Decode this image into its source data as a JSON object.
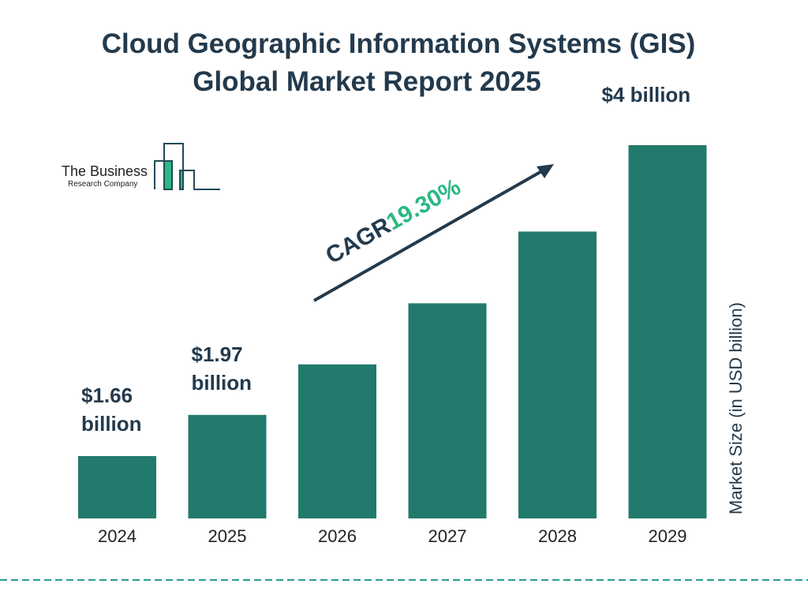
{
  "title_line1": "Cloud Geographic Information Systems (GIS)",
  "title_line2": "Global Market Report 2025",
  "logo": {
    "line1": "The Business",
    "line2": "Research Company"
  },
  "cagr": {
    "label": "CAGR",
    "value": "19.30%"
  },
  "colors": {
    "bar": "#217a6b",
    "accent": "#2bb883",
    "text": "#233a4d"
  },
  "chart_data": {
    "type": "bar",
    "categories": [
      "2024",
      "2025",
      "2026",
      "2027",
      "2028",
      "2029"
    ],
    "values": [
      1.66,
      1.97,
      2.35,
      2.81,
      3.35,
      4.0
    ],
    "data_labels": [
      {
        "category": "2024",
        "line1": "$1.66",
        "line2": "billion"
      },
      {
        "category": "2025",
        "line1": "$1.97",
        "line2": "billion"
      },
      {
        "category": "2029",
        "line1": "$4 billion",
        "line2": ""
      }
    ],
    "ylabel": "Market Size (in USD billion)",
    "xlabel": "",
    "grid": false
  }
}
